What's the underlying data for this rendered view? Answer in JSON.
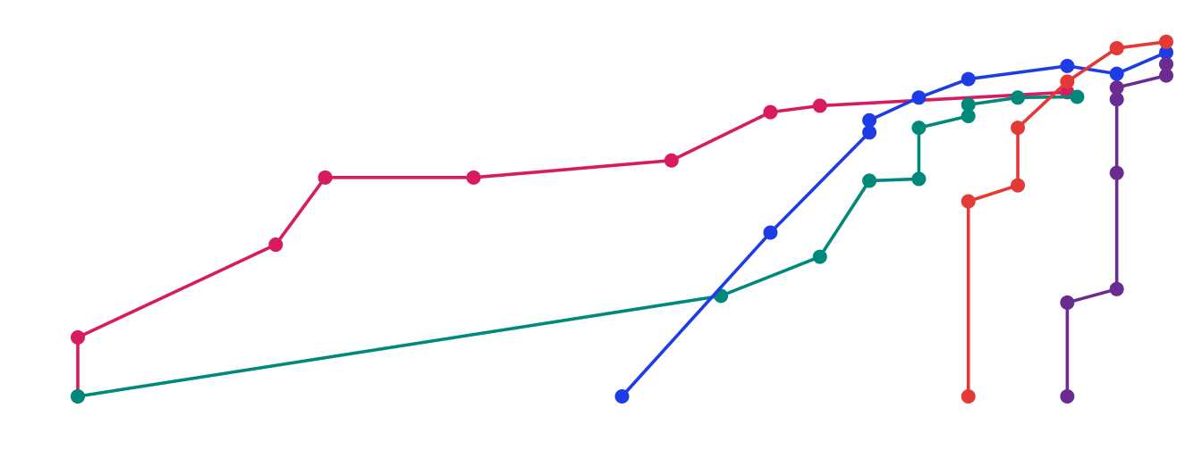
{
  "chart_data": {
    "type": "line",
    "title": "",
    "xlabel": "",
    "ylabel": "",
    "grid": false,
    "legend": "none",
    "axes_visible": false,
    "xlim": [
      0,
      22
    ],
    "ylim": [
      0,
      100
    ],
    "series": [
      {
        "color": "#d81b60",
        "points": [
          [
            0,
            0
          ],
          [
            0,
            16.6
          ],
          [
            4,
            42.7
          ],
          [
            5,
            61.6
          ],
          [
            8,
            61.6
          ],
          [
            12,
            66.4
          ],
          [
            14,
            80.0
          ],
          [
            15,
            81.8
          ],
          [
            20,
            85.6
          ]
        ]
      },
      {
        "color": "#00897b",
        "points": [
          [
            0,
            0
          ],
          [
            13,
            28.3
          ],
          [
            15,
            39.3
          ],
          [
            16,
            60.7
          ],
          [
            17,
            61.2
          ],
          [
            17,
            75.6
          ],
          [
            18,
            78.9
          ],
          [
            18,
            82.1
          ],
          [
            19,
            84.1
          ],
          [
            20.2,
            84.3
          ]
        ]
      },
      {
        "color": "#1e3ce6",
        "points": [
          [
            11,
            0
          ],
          [
            14,
            46.1
          ],
          [
            16,
            74.3
          ],
          [
            16,
            77.7
          ],
          [
            17,
            84.1
          ],
          [
            18,
            89.3
          ],
          [
            20,
            93.0
          ],
          [
            21,
            90.8
          ],
          [
            22,
            96.8
          ]
        ]
      },
      {
        "color": "#e53935",
        "points": [
          [
            18,
            0
          ],
          [
            18,
            54.9
          ],
          [
            19,
            59.4
          ],
          [
            19,
            75.6
          ],
          [
            20,
            88.6
          ],
          [
            21,
            98.0
          ],
          [
            22,
            99.8
          ]
        ]
      },
      {
        "color": "#6a2c91",
        "points": [
          [
            20,
            0
          ],
          [
            20,
            26.4
          ],
          [
            21,
            30.2
          ],
          [
            21,
            62.9
          ],
          [
            21,
            83.6
          ],
          [
            21,
            86.9
          ],
          [
            22,
            90.3
          ],
          [
            22,
            93.5
          ]
        ]
      }
    ]
  },
  "style": {
    "background": "#ffffff",
    "line_width": 3.6,
    "marker_radius": 8
  }
}
